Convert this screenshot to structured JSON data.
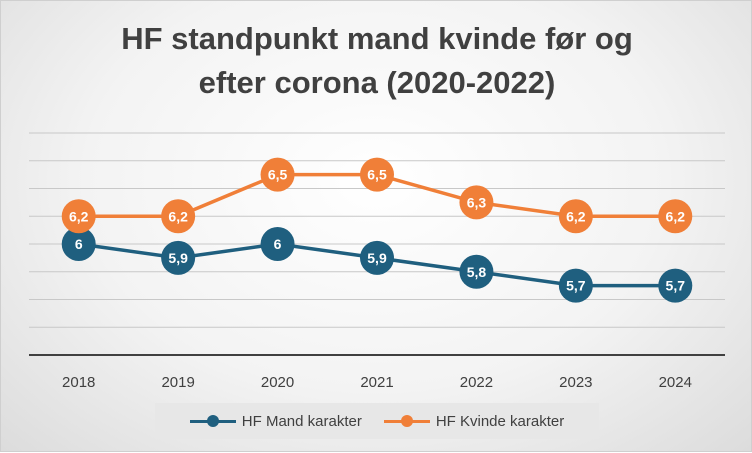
{
  "chart_data": {
    "type": "line",
    "title_lines": [
      "HF standpunkt mand kvinde før og",
      "efter corona (2020-2022)"
    ],
    "categories": [
      "2018",
      "2019",
      "2020",
      "2021",
      "2022",
      "2023",
      "2024"
    ],
    "series": [
      {
        "name": "HF Mand karakter",
        "color": "#1f5f7f",
        "values": [
          6.0,
          5.9,
          6.0,
          5.9,
          5.8,
          5.7,
          5.7
        ],
        "labels": [
          "6",
          "5,9",
          "6",
          "5,9",
          "5,8",
          "5,7",
          "5,7"
        ]
      },
      {
        "name": "HF Kvinde karakter",
        "color": "#f07f38",
        "values": [
          6.2,
          6.2,
          6.5,
          6.5,
          6.3,
          6.2,
          6.2
        ],
        "labels": [
          "6,2",
          "6,2",
          "6,5",
          "6,5",
          "6,3",
          "6,2",
          "6,2"
        ]
      }
    ],
    "ylim": [
      5.2,
      6.8
    ],
    "grid": true,
    "y_tick_labels_shown": false,
    "legend_position": "bottom"
  }
}
